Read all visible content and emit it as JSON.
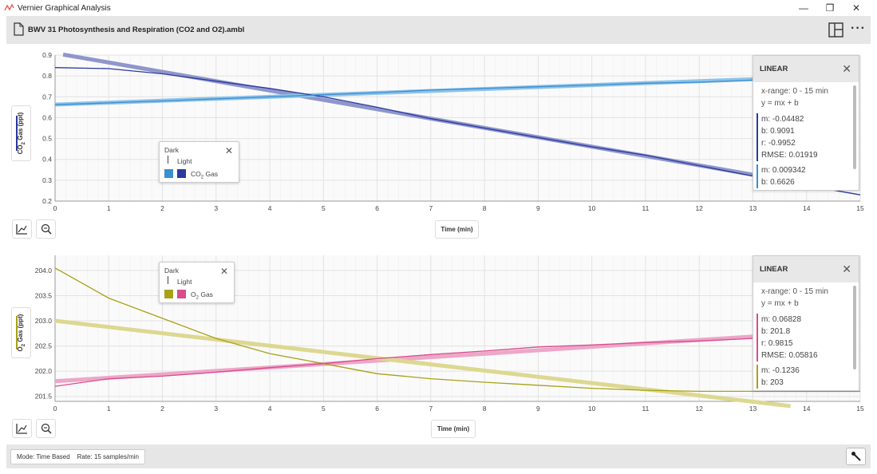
{
  "window": {
    "app_title": "Vernier Graphical Analysis",
    "minimize": "—",
    "maximize": "❐",
    "close": "✕"
  },
  "file": {
    "title": "BWV 31 Photosynthesis and Respiration (CO2 and O2).ambl"
  },
  "graph1": {
    "ylabel_pre": "CO",
    "ylabel_sub": "2",
    "ylabel_post": " Gas (ppt)",
    "xlabel": "Time (min)",
    "yticks": [
      "0.9",
      "0.8",
      "0.7",
      "0.6",
      "0.5",
      "0.4",
      "0.3",
      "0.2"
    ],
    "xticks": [
      "0",
      "1",
      "2",
      "3",
      "4",
      "5",
      "6",
      "7",
      "8",
      "9",
      "10",
      "11",
      "12",
      "13",
      "14",
      "15"
    ],
    "legend": {
      "group": "Dark",
      "sub": "Light",
      "series_pre": "CO",
      "series_sub": "2",
      "series_post": " Gas"
    },
    "fit": {
      "title": "LINEAR",
      "xrange": "x-range: 0 - 15 min",
      "equation": "y = mx + b",
      "dark": {
        "m": "m: -0.04482",
        "b": "b: 0.9091",
        "r": "r: -0.9952",
        "rmse": "RMSE: 0.01919"
      },
      "light": {
        "m": "m: 0.009342",
        "b": "b: 0.6626"
      }
    }
  },
  "graph2": {
    "ylabel_pre": "O",
    "ylabel_sub": "2",
    "ylabel_post": " Gas (ppt)",
    "xlabel": "Time (min)",
    "yticks": [
      "204.0",
      "203.5",
      "203.0",
      "202.5",
      "202.0",
      "201.5"
    ],
    "xticks": [
      "0",
      "1",
      "2",
      "3",
      "4",
      "5",
      "6",
      "7",
      "8",
      "9",
      "10",
      "11",
      "12",
      "13",
      "14",
      "15"
    ],
    "legend": {
      "group": "Dark",
      "sub": "Light",
      "series_pre": "O",
      "series_sub": "2",
      "series_post": " Gas"
    },
    "fit": {
      "title": "LINEAR",
      "xrange": "x-range: 0 - 15 min",
      "equation": "y = mx + b",
      "light": {
        "m": "m: 0.06828",
        "b": "b: 201.8",
        "r": "r: 0.9815",
        "rmse": "RMSE: 0.05816"
      },
      "dark": {
        "m": "m: -0.1236",
        "b": "b: 203"
      }
    }
  },
  "status": {
    "mode": "Mode: Time Based",
    "rate": "Rate: 15 samples/min"
  },
  "colors": {
    "co2_dark": "#2b3a9e",
    "co2_light": "#3a8fd0",
    "co2_dark_fit": "#8f96cc",
    "co2_light_fit": "#8ec3ea",
    "o2_dark": "#a8a118",
    "o2_light": "#d84c8c",
    "o2_dark_fit": "#ddd890",
    "o2_light_fit": "#eda7c8"
  },
  "chart_data": [
    {
      "type": "line",
      "title": "",
      "xlabel": "Time (min)",
      "ylabel": "CO2 Gas (ppt)",
      "xlim": [
        0,
        15
      ],
      "ylim": [
        0.2,
        0.9
      ],
      "grid": true,
      "legend": "top-left",
      "series": [
        {
          "name": "Dark CO2 Gas",
          "x": [
            0,
            1,
            2,
            3,
            4,
            5,
            6,
            7,
            8,
            9,
            10,
            11,
            12,
            13,
            15
          ],
          "y": [
            0.84,
            0.835,
            0.81,
            0.775,
            0.74,
            0.7,
            0.65,
            0.595,
            0.55,
            0.505,
            0.46,
            0.42,
            0.37,
            0.32,
            0.23
          ]
        },
        {
          "name": "Light CO2 Gas",
          "x": [
            0,
            1,
            2,
            3,
            4,
            5,
            6,
            7,
            8,
            9,
            10,
            11,
            12,
            13
          ],
          "y": [
            0.662,
            0.671,
            0.68,
            0.69,
            0.7,
            0.71,
            0.72,
            0.732,
            0.74,
            0.748,
            0.756,
            0.765,
            0.77,
            0.78
          ]
        }
      ],
      "fits": [
        {
          "name": "Dark fit",
          "m": -0.04482,
          "b": 0.9091,
          "x": [
            0.15,
            13
          ]
        },
        {
          "name": "Light fit",
          "m": 0.009342,
          "b": 0.6626,
          "x": [
            0,
            13
          ]
        }
      ]
    },
    {
      "type": "line",
      "title": "",
      "xlabel": "Time (min)",
      "ylabel": "O2 Gas (ppt)",
      "xlim": [
        0,
        15
      ],
      "ylim": [
        201.4,
        204.3
      ],
      "grid": true,
      "legend": "top-left",
      "series": [
        {
          "name": "Dark O2 Gas",
          "x": [
            0,
            0.5,
            1,
            2,
            3,
            4,
            5,
            6,
            7,
            8,
            9,
            10,
            11,
            12,
            13,
            15
          ],
          "y": [
            204.05,
            203.75,
            203.45,
            203.05,
            202.65,
            202.35,
            202.15,
            201.95,
            201.85,
            201.78,
            201.72,
            201.66,
            201.62,
            201.6,
            201.6,
            201.6
          ]
        },
        {
          "name": "Light O2 Gas",
          "x": [
            0,
            1,
            2,
            3,
            4,
            5,
            6,
            7,
            8,
            9,
            10,
            11,
            12,
            13
          ],
          "y": [
            201.7,
            201.85,
            201.9,
            201.98,
            202.07,
            202.15,
            202.25,
            202.33,
            202.4,
            202.48,
            202.52,
            202.57,
            202.6,
            202.65
          ]
        }
      ],
      "fits": [
        {
          "name": "Light fit",
          "m": 0.06828,
          "b": 201.8,
          "x": [
            0,
            13
          ]
        },
        {
          "name": "Dark fit",
          "m": -0.1236,
          "b": 203,
          "x": [
            0,
            13.7
          ]
        }
      ]
    }
  ]
}
